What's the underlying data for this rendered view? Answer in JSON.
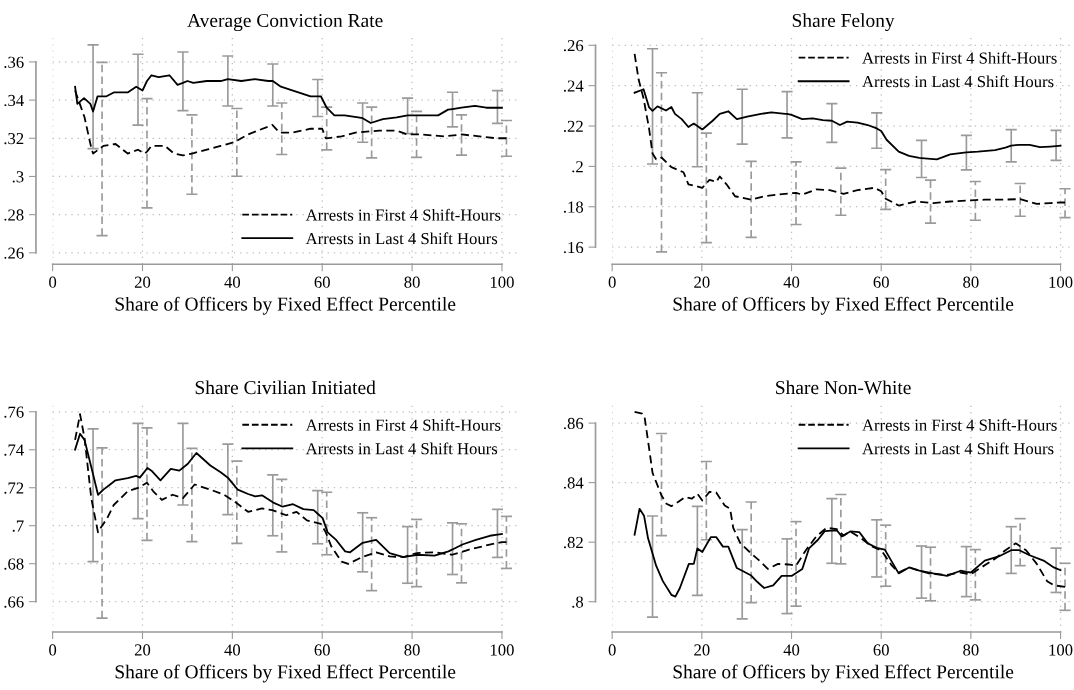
{
  "chart_data": [
    {
      "type": "line",
      "title": "Average Conviction Rate",
      "xlabel": "Share of Officers by Fixed Effect Percentile",
      "xlim": [
        0,
        103.5
      ],
      "xticks": [
        0,
        20,
        40,
        60,
        80,
        100
      ],
      "ylim": [
        0.254,
        0.374
      ],
      "yticks": [
        {
          "value": 0.26,
          "label": ".26"
        },
        {
          "value": 0.28,
          "label": ".28"
        },
        {
          "value": 0.3,
          "label": ".3"
        },
        {
          "value": 0.32,
          "label": ".32"
        },
        {
          "value": 0.34,
          "label": ".34"
        },
        {
          "value": 0.36,
          "label": ".36"
        }
      ],
      "grid": true,
      "legend": "bottom right",
      "series": [
        {
          "name": "Arrests in First 4 Shift-Hours",
          "color": "#000000",
          "line_style": "dashed",
          "x": [
            5,
            7.1,
            8.6,
            9,
            11,
            11.3,
            14,
            16.7,
            19,
            20.5,
            21,
            22,
            25,
            27,
            29,
            31,
            34.3,
            37.4,
            40.5,
            41,
            43.5,
            48.9,
            50.5,
            51,
            53.5,
            57.4,
            60,
            60.8,
            61,
            64.3,
            67.4,
            71,
            72.7,
            76.6,
            78.9,
            81,
            82,
            87.3,
            91,
            95,
            98.8,
            101
          ],
          "values": [
            0.345,
            0.331,
            0.315,
            0.312,
            0.3155,
            0.316,
            0.317,
            0.312,
            0.314,
            0.312,
            0.313,
            0.316,
            0.316,
            0.312,
            0.311,
            0.312,
            0.314,
            0.316,
            0.318,
            0.3187,
            0.322,
            0.327,
            0.323,
            0.323,
            0.323,
            0.325,
            0.325,
            0.32,
            0.32,
            0.321,
            0.323,
            0.3237,
            0.324,
            0.324,
            0.322,
            0.322,
            0.322,
            0.321,
            0.322,
            0.321,
            0.32,
            0.32
          ],
          "errors": [
            null,
            null,
            null,
            null,
            [
              0.269,
              0.3598
            ],
            null,
            null,
            null,
            null,
            null,
            [
              0.2835,
              0.3408
            ],
            null,
            null,
            null,
            null,
            [
              0.2907,
              0.3323
            ],
            null,
            null,
            null,
            [
              0.3001,
              0.3356
            ],
            null,
            null,
            null,
            [
              0.3115,
              0.3385
            ],
            null,
            null,
            null,
            null,
            [
              0.3139,
              0.3363
            ],
            null,
            null,
            [
              0.3097,
              0.3363
            ],
            null,
            null,
            null,
            [
              0.31,
              0.3341
            ],
            null,
            null,
            [
              0.3112,
              0.3323
            ],
            null,
            null,
            [
              0.3106,
              0.3293
            ]
          ]
        },
        {
          "name": "Arrests in Last 4 Shift Hours",
          "color": "#000000",
          "line_style": "solid",
          "x": [
            5,
            5.5,
            7,
            8.4,
            9,
            10,
            12,
            13.6,
            14.7,
            16.7,
            18.6,
            19,
            20,
            21,
            22,
            23.6,
            26,
            27.8,
            29,
            30,
            31.3,
            34.3,
            37.4,
            39,
            42,
            45,
            48,
            49,
            50.8,
            53.5,
            57.4,
            59,
            59.7,
            61,
            62.7,
            65,
            68,
            69,
            70.8,
            73.5,
            76.6,
            79,
            82.7,
            85.8,
            88,
            89,
            91,
            94,
            96.5,
            99,
            100
          ],
          "values": [
            0.347,
            0.338,
            0.341,
            0.338,
            0.334,
            0.342,
            0.342,
            0.344,
            0.344,
            0.344,
            0.347,
            0.3465,
            0.345,
            0.35,
            0.353,
            0.352,
            0.353,
            0.348,
            0.349,
            0.35,
            0.349,
            0.35,
            0.35,
            0.351,
            0.35,
            0.351,
            0.35,
            0.35,
            0.347,
            0.345,
            0.342,
            0.342,
            0.342,
            0.336,
            0.332,
            0.332,
            0.331,
            0.3305,
            0.328,
            0.33,
            0.331,
            0.332,
            0.332,
            0.332,
            0.335,
            0.3353,
            0.336,
            0.337,
            0.336,
            0.336,
            0.336
          ],
          "errors": [
            null,
            null,
            null,
            null,
            [
              0.3146,
              0.3689
            ],
            null,
            null,
            null,
            null,
            null,
            null,
            [
              0.3269,
              0.364
            ],
            null,
            null,
            null,
            null,
            null,
            null,
            [
              0.3345,
              0.3652
            ],
            null,
            null,
            null,
            null,
            [
              0.3369,
              0.3631
            ],
            null,
            null,
            null,
            [
              0.3369,
              0.3589
            ],
            null,
            null,
            null,
            [
              0.3314,
              0.3508
            ],
            null,
            null,
            null,
            null,
            null,
            [
              0.3179,
              0.3385
            ],
            null,
            null,
            null,
            [
              0.3224,
              0.341
            ],
            null,
            null,
            null,
            [
              0.326,
              0.3441
            ],
            null,
            null,
            null,
            [
              0.3278,
              0.345
            ],
            null
          ]
        }
      ]
    },
    {
      "type": "line",
      "title": "Share Felony",
      "xlabel": "Share of Officers by Fixed Effect Percentile",
      "xlim": [
        0,
        103
      ],
      "xticks": [
        0,
        20,
        40,
        60,
        80,
        100
      ],
      "ylim": [
        0.1515,
        0.265
      ],
      "yticks": [
        {
          "value": 0.16,
          "label": ".16"
        },
        {
          "value": 0.18,
          "label": ".18"
        },
        {
          "value": 0.2,
          "label": ".2"
        },
        {
          "value": 0.22,
          "label": ".22"
        },
        {
          "value": 0.24,
          "label": ".24"
        },
        {
          "value": 0.26,
          "label": ".26"
        }
      ],
      "grid": true,
      "legend": "top right",
      "series": [
        {
          "name": "Arrests in First 4 Shift-Hours",
          "color": "#000000",
          "line_style": "dashed",
          "x": [
            5,
            5.9,
            7,
            8.2,
            9,
            9.8,
            11,
            13.2,
            15.9,
            17,
            20.1,
            21,
            21.7,
            23.2,
            24,
            25.5,
            27.4,
            31,
            33.9,
            37,
            41,
            42.4,
            45.5,
            48.5,
            51,
            51.6,
            54.7,
            58.5,
            60,
            61,
            63.9,
            67.7,
            71,
            71.6,
            75.4,
            79.3,
            81,
            83.1,
            87,
            91,
            94.7,
            97.7,
            100,
            101
          ],
          "values": [
            0.2557,
            0.243,
            0.2336,
            0.2192,
            0.2064,
            0.2035,
            0.2044,
            0.1996,
            0.1971,
            0.1911,
            0.1894,
            0.1916,
            0.1933,
            0.1923,
            0.195,
            0.1911,
            0.1852,
            0.1835,
            0.1852,
            0.186,
            0.1869,
            0.186,
            0.1886,
            0.1882,
            0.1868,
            0.1864,
            0.1882,
            0.1894,
            0.1877,
            0.184,
            0.1806,
            0.1826,
            0.1819,
            0.1818,
            0.1826,
            0.1831,
            0.1833,
            0.1835,
            0.1835,
            0.1838,
            0.1814,
            0.1818,
            0.1821,
            0.1821
          ],
          "errors": [
            null,
            null,
            null,
            null,
            null,
            null,
            [
              0.1576,
              0.2464
            ],
            null,
            null,
            null,
            null,
            [
              0.1622,
              0.2165
            ],
            null,
            null,
            null,
            null,
            null,
            [
              0.1648,
              0.2025
            ],
            null,
            null,
            [
              0.1712,
              0.2022
            ],
            null,
            null,
            null,
            [
              0.1758,
              0.1991
            ],
            null,
            null,
            null,
            null,
            [
              0.1787,
              0.1984
            ],
            null,
            null,
            [
              0.1719,
              0.1932
            ],
            null,
            null,
            null,
            [
              0.1733,
              0.1925
            ],
            null,
            null,
            [
              0.1753,
              0.1915
            ],
            null,
            null,
            null,
            [
              0.1746,
              0.1889
            ]
          ]
        },
        {
          "name": "Arrests in Last 4 Shift Hours",
          "color": "#000000",
          "line_style": "solid",
          "x": [
            5,
            6.3,
            7,
            8.2,
            9,
            10.1,
            12,
            13.2,
            14,
            15.5,
            17,
            18.2,
            19,
            20.1,
            22.4,
            24,
            25.9,
            27.8,
            29,
            30.1,
            33.2,
            35.5,
            38.6,
            39,
            40,
            42.4,
            44.7,
            47,
            49,
            50.8,
            52.4,
            54.7,
            57,
            59,
            60,
            61.2,
            63.9,
            66.2,
            68.5,
            69,
            72.4,
            75.4,
            78.5,
            79,
            81.6,
            85.4,
            87.7,
            89,
            90.8,
            93.1,
            95.4,
            97.7,
            99,
            100
          ],
          "values": [
            0.2365,
            0.2376,
            0.2382,
            0.2294,
            0.2275,
            0.2297,
            0.2277,
            0.2294,
            0.226,
            0.2234,
            0.2195,
            0.2212,
            0.22,
            0.2183,
            0.2226,
            0.226,
            0.2273,
            0.2234,
            0.224,
            0.2246,
            0.226,
            0.2268,
            0.226,
            0.226,
            0.2255,
            0.2234,
            0.2238,
            0.2229,
            0.2226,
            0.2205,
            0.2222,
            0.2217,
            0.2205,
            0.2188,
            0.2175,
            0.2132,
            0.2073,
            0.2052,
            0.2042,
            0.2041,
            0.2035,
            0.2059,
            0.2068,
            0.2069,
            0.2073,
            0.2081,
            0.2093,
            0.2103,
            0.2107,
            0.2107,
            0.2095,
            0.2098,
            0.21,
            0.2102
          ],
          "errors": [
            null,
            null,
            null,
            null,
            [
              0.2012,
              0.2583
            ],
            null,
            null,
            null,
            null,
            null,
            null,
            null,
            [
              0.1998,
              0.2365
            ],
            null,
            null,
            null,
            null,
            null,
            [
              0.211,
              0.2382
            ],
            null,
            null,
            null,
            null,
            [
              0.2141,
              0.237
            ],
            null,
            null,
            null,
            null,
            [
              0.2119,
              0.2311
            ],
            null,
            null,
            null,
            null,
            [
              0.209,
              0.2265
            ],
            null,
            null,
            null,
            null,
            null,
            [
              0.1945,
              0.2129
            ],
            null,
            null,
            null,
            [
              0.1983,
              0.2154
            ],
            null,
            null,
            null,
            [
              0.2022,
              0.2182
            ],
            null,
            null,
            null,
            null,
            [
              0.203,
              0.2178
            ],
            null
          ]
        }
      ]
    },
    {
      "type": "line",
      "title": "Share Civilian Initiated",
      "xlabel": "Share of Officers by Fixed Effect Percentile",
      "xlim": [
        0,
        103.5
      ],
      "xticks": [
        0,
        20,
        40,
        60,
        80,
        100
      ],
      "ylim": [
        0.644,
        0.765
      ],
      "yticks": [
        {
          "value": 0.66,
          "label": ".66"
        },
        {
          "value": 0.68,
          "label": ".68"
        },
        {
          "value": 0.7,
          "label": ".7"
        },
        {
          "value": 0.72,
          "label": ".72"
        },
        {
          "value": 0.74,
          "label": ".74"
        },
        {
          "value": 0.76,
          "label": ".76"
        }
      ],
      "grid": true,
      "legend": "top right",
      "series": [
        {
          "name": "Arrests in First 4 Shift-Hours",
          "color": "#000000",
          "line_style": "dashed",
          "x": [
            5,
            6.1,
            7.1,
            8.6,
            10.1,
            11,
            12.1,
            13.6,
            16.7,
            19,
            21,
            22.4,
            24.3,
            26.7,
            29,
            31,
            31.6,
            35.1,
            38.2,
            40.5,
            41,
            43.5,
            46.6,
            48.9,
            51,
            52,
            54.3,
            56.6,
            59.7,
            60.8,
            61,
            62,
            64.3,
            65.8,
            68.9,
            71,
            72,
            75,
            78.1,
            81,
            85,
            88.9,
            91,
            92.7,
            96.5,
            100,
            101
          ],
          "values": [
            0.7452,
            0.7587,
            0.7461,
            0.7145,
            0.6965,
            0.7,
            0.7037,
            0.7109,
            0.7181,
            0.7199,
            0.7226,
            0.7181,
            0.7136,
            0.7163,
            0.7145,
            0.72,
            0.7217,
            0.719,
            0.7163,
            0.7127,
            0.7118,
            0.7073,
            0.7091,
            0.7082,
            0.7064,
            0.7055,
            0.7073,
            0.7028,
            0.701,
            0.6965,
            0.6953,
            0.6892,
            0.6811,
            0.6799,
            0.6835,
            0.6852,
            0.686,
            0.6838,
            0.6835,
            0.6856,
            0.686,
            0.6847,
            0.6862,
            0.6874,
            0.6896,
            0.6914,
            0.6914
          ],
          "errors": [
            null,
            null,
            null,
            null,
            null,
            [
              0.6513,
              0.741
            ],
            null,
            null,
            null,
            null,
            [
              0.6923,
              0.7515
            ],
            null,
            null,
            null,
            null,
            [
              0.6916,
              0.7407
            ],
            null,
            null,
            null,
            null,
            [
              0.6907,
              0.734
            ],
            null,
            null,
            null,
            [
              0.6862,
              0.7244
            ],
            null,
            null,
            null,
            null,
            null,
            [
              0.6847,
              0.7176
            ],
            null,
            null,
            null,
            null,
            [
              0.6658,
              0.7042
            ],
            null,
            null,
            null,
            [
              0.6679,
              0.7033
            ],
            null,
            null,
            [
              0.6699,
              0.701
            ],
            null,
            null,
            null,
            [
              0.6775,
              0.7049
            ]
          ]
        },
        {
          "name": "Arrests in Last 4 Shift Hours",
          "color": "#000000",
          "line_style": "solid",
          "x": [
            5,
            6.1,
            7.1,
            9,
            10.1,
            11.3,
            12.8,
            14,
            16.7,
            18.6,
            19,
            19.4,
            21.1,
            22,
            24,
            26.3,
            28.2,
            29,
            30.1,
            32,
            35.1,
            37.4,
            39,
            41.2,
            43.5,
            45.1,
            46.6,
            49,
            51.2,
            53.5,
            55.8,
            58.1,
            59,
            60.1,
            61.2,
            63.1,
            65.1,
            66.2,
            69,
            72,
            75,
            78.1,
            79,
            81.2,
            85,
            88.1,
            89,
            91.2,
            94.2,
            97.3,
            99,
            100
          ],
          "values": [
            0.7401,
            0.7484,
            0.7452,
            0.7271,
            0.7163,
            0.719,
            0.7217,
            0.7239,
            0.725,
            0.7262,
            0.7258,
            0.7253,
            0.7304,
            0.729,
            0.7239,
            0.7299,
            0.729,
            0.7305,
            0.7326,
            0.7383,
            0.7317,
            0.7281,
            0.7253,
            0.719,
            0.7167,
            0.7154,
            0.716,
            0.7123,
            0.71,
            0.7113,
            0.7087,
            0.7082,
            0.7063,
            0.704,
            0.6965,
            0.6925,
            0.6865,
            0.686,
            0.691,
            0.6925,
            0.6856,
            0.6835,
            0.6838,
            0.6847,
            0.6842,
            0.6865,
            0.6875,
            0.6901,
            0.6925,
            0.6947,
            0.6953,
            0.6956
          ],
          "errors": [
            null,
            null,
            null,
            [
              0.6811,
              0.751
            ],
            null,
            null,
            null,
            null,
            null,
            null,
            [
              0.7037,
              0.7539
            ],
            null,
            null,
            null,
            null,
            null,
            null,
            [
              0.7109,
              0.7539
            ],
            null,
            null,
            null,
            null,
            [
              0.7058,
              0.743
            ],
            null,
            null,
            null,
            null,
            [
              0.6947,
              0.7268
            ],
            null,
            null,
            null,
            null,
            [
              0.6905,
              0.7185
            ],
            null,
            null,
            null,
            null,
            null,
            [
              0.6757,
              0.7068
            ],
            null,
            null,
            null,
            [
              0.6697,
              0.6995
            ],
            null,
            null,
            null,
            [
              0.6743,
              0.7015
            ],
            null,
            null,
            null,
            [
              0.6833,
              0.7086
            ],
            null
          ]
        }
      ]
    },
    {
      "type": "line",
      "title": "Share Non-White",
      "xlabel": "Share of Officers by Fixed Effect Percentile",
      "xlim": [
        0,
        103
      ],
      "xticks": [
        0,
        20,
        40,
        60,
        80,
        100
      ],
      "ylim": [
        0.7898,
        0.867
      ],
      "yticks": [
        {
          "value": 0.8,
          "label": ".8"
        },
        {
          "value": 0.82,
          "label": ".82"
        },
        {
          "value": 0.84,
          "label": ".84"
        },
        {
          "value": 0.86,
          "label": ".86"
        }
      ],
      "grid": true,
      "legend": "top right",
      "series": [
        {
          "name": "Arrests in First 4 Shift-Hours",
          "color": "#000000",
          "line_style": "dashed",
          "x": [
            5,
            6.7,
            7.2,
            8.2,
            9,
            11,
            12.1,
            13.2,
            14.7,
            16.3,
            17.8,
            19,
            20.1,
            21,
            21.7,
            23.2,
            25.1,
            26.3,
            27,
            28.6,
            31,
            33.2,
            34.7,
            37,
            39.3,
            41,
            43.2,
            45.5,
            47.8,
            50.1,
            51,
            51.6,
            53.1,
            55.5,
            57.8,
            60.1,
            61,
            62.4,
            63.9,
            66.2,
            68.5,
            71,
            74.7,
            77.7,
            80,
            81,
            82.3,
            85.4,
            87.7,
            90,
            91,
            92.3,
            94.7,
            97,
            98.5,
            101
          ],
          "values": [
            0.8638,
            0.8632,
            0.8623,
            0.8519,
            0.8433,
            0.8357,
            0.8329,
            0.8321,
            0.8335,
            0.8352,
            0.8346,
            0.8363,
            0.834,
            0.8356,
            0.8369,
            0.8367,
            0.8323,
            0.8312,
            0.8248,
            0.8196,
            0.8162,
            0.8133,
            0.811,
            0.8127,
            0.8125,
            0.8121,
            0.8173,
            0.8219,
            0.8248,
            0.8244,
            0.8231,
            0.8222,
            0.8236,
            0.8213,
            0.8187,
            0.8171,
            0.8151,
            0.8121,
            0.8098,
            0.8115,
            0.8104,
            0.8094,
            0.809,
            0.8098,
            0.8092,
            0.8102,
            0.8115,
            0.8144,
            0.8173,
            0.8196,
            0.8186,
            0.8173,
            0.8127,
            0.8069,
            0.8055,
            0.805
          ],
          "errors": [
            null,
            null,
            null,
            null,
            null,
            [
              0.8222,
              0.8565
            ],
            null,
            null,
            null,
            null,
            null,
            null,
            null,
            [
              0.8208,
              0.8471
            ],
            null,
            null,
            null,
            null,
            null,
            null,
            [
              0.7997,
              0.8335
            ],
            null,
            null,
            null,
            null,
            [
              0.7985,
              0.8269
            ],
            null,
            null,
            null,
            null,
            [
              0.8127,
              0.836
            ],
            null,
            null,
            null,
            null,
            null,
            [
              0.8052,
              0.8257
            ],
            null,
            null,
            null,
            null,
            [
              0.8003,
              0.8183
            ],
            null,
            null,
            null,
            [
              0.8006,
              0.8175
            ],
            null,
            null,
            null,
            null,
            [
              0.8121,
              0.8279
            ],
            null,
            null,
            null,
            null,
            [
              0.7971,
              0.8129
            ]
          ]
        },
        {
          "name": "Arrests in Last 4 Shift Hours",
          "color": "#000000",
          "line_style": "solid",
          "x": [
            5,
            6.1,
            7.1,
            8,
            9,
            9.8,
            11.3,
            13.2,
            14.1,
            15.1,
            17.1,
            18.2,
            19,
            20.1,
            22,
            23.2,
            24.7,
            25.9,
            27.8,
            29,
            30.9,
            32.4,
            33.9,
            35.9,
            37.8,
            39,
            40.1,
            42.4,
            43.9,
            45.9,
            47.4,
            49,
            50.1,
            51.2,
            53.1,
            55.1,
            57,
            59,
            60.8,
            63.9,
            66.2,
            68.5,
            69,
            71.6,
            74.7,
            77.7,
            79,
            80,
            83.1,
            86.2,
            89,
            90.8,
            93.1,
            96.2,
            98.5,
            99,
            100
          ],
          "values": [
            0.8225,
            0.8312,
            0.8289,
            0.8213,
            0.8162,
            0.8121,
            0.8069,
            0.8023,
            0.8017,
            0.8046,
            0.8127,
            0.8127,
            0.8179,
            0.8167,
            0.8217,
            0.8217,
            0.8185,
            0.8185,
            0.8113,
            0.8104,
            0.8089,
            0.8066,
            0.8046,
            0.8055,
            0.8087,
            0.8087,
            0.8087,
            0.811,
            0.8179,
            0.8208,
            0.8237,
            0.8239,
            0.824,
            0.8219,
            0.8236,
            0.8234,
            0.8196,
            0.8181,
            0.8175,
            0.8095,
            0.8115,
            0.8104,
            0.8103,
            0.8095,
            0.8087,
            0.8104,
            0.81,
            0.8098,
            0.8138,
            0.8152,
            0.8173,
            0.8173,
            0.8156,
            0.8138,
            0.8115,
            0.8112,
            0.8106
          ],
          "errors": [
            null,
            null,
            null,
            null,
            [
              0.7948,
              0.8288
            ],
            null,
            null,
            null,
            null,
            null,
            null,
            null,
            [
              0.8021,
              0.832
            ],
            null,
            null,
            null,
            null,
            null,
            null,
            [
              0.7942,
              0.8242
            ],
            null,
            null,
            null,
            null,
            null,
            [
              0.796,
              0.8211
            ],
            null,
            null,
            null,
            null,
            null,
            [
              0.8129,
              0.8346
            ],
            null,
            null,
            null,
            null,
            null,
            [
              0.8083,
              0.8275
            ],
            null,
            null,
            null,
            null,
            [
              0.8012,
              0.8187
            ],
            null,
            null,
            null,
            [
              0.8017,
              0.8185
            ],
            null,
            null,
            null,
            [
              0.8095,
              0.8252
            ],
            null,
            null,
            null,
            null,
            [
              0.8031,
              0.818
            ],
            null
          ]
        }
      ]
    }
  ]
}
